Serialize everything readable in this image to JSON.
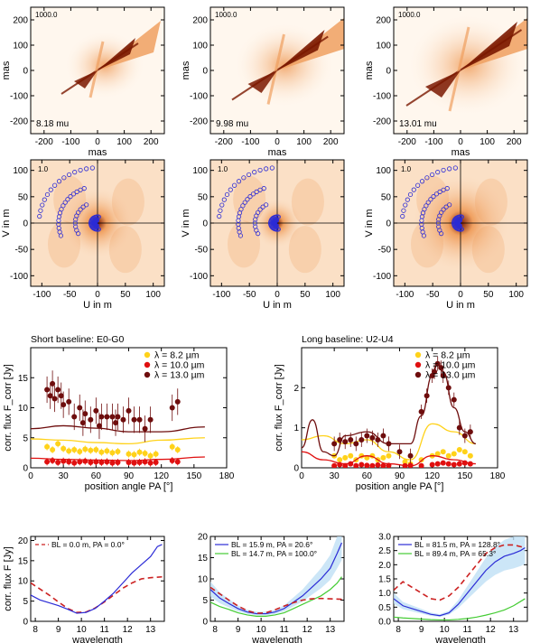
{
  "colors": {
    "axis": "#000000",
    "img_light": "#fff7ee",
    "img_mid": "#f0a060",
    "img_dark": "#7a1800",
    "uv_points": "#2b2bd6",
    "yellow": "#ffd21a",
    "red": "#e01010",
    "darkred": "#6e0d0d",
    "blue": "#2b2bd6",
    "green": "#44cc33",
    "blue_band": "#bfe0f5",
    "dash_red": "#cc2222"
  },
  "chart_data": [
    {
      "type": "heatmap",
      "panel": "image-1",
      "xlabel": "mas",
      "ylabel": "mas",
      "xlim": [
        -250,
        250
      ],
      "ylim": [
        -250,
        250
      ],
      "xticks": [
        -200,
        -100,
        0,
        100,
        200
      ],
      "yticks": [
        -200,
        -100,
        0,
        100,
        200
      ],
      "scale_label": "1000.0",
      "annotation": "8.18 mu"
    },
    {
      "type": "heatmap",
      "panel": "image-2",
      "xlabel": "mas",
      "ylabel": "mas",
      "xlim": [
        -250,
        250
      ],
      "ylim": [
        -250,
        250
      ],
      "xticks": [
        -200,
        -100,
        0,
        100,
        200
      ],
      "yticks": [
        -200,
        -100,
        0,
        100,
        200
      ],
      "scale_label": "1000.0",
      "annotation": "9.98 mu"
    },
    {
      "type": "heatmap",
      "panel": "image-3",
      "xlabel": "mas",
      "ylabel": "mas",
      "xlim": [
        -250,
        250
      ],
      "ylim": [
        -250,
        250
      ],
      "xticks": [
        -200,
        -100,
        0,
        100,
        200
      ],
      "yticks": [
        -200,
        -100,
        0,
        100,
        200
      ],
      "scale_label": "1000.0",
      "annotation": "13.01 mu"
    },
    {
      "type": "heatmap",
      "panel": "uv-1",
      "xlabel": "U in m",
      "ylabel": "V in m",
      "xlim": [
        -120,
        120
      ],
      "ylim": [
        -120,
        120
      ],
      "xticks": [
        -100,
        -50,
        0,
        50,
        100
      ],
      "yticks": [
        -100,
        -50,
        0,
        50,
        100
      ],
      "scale_label": "1.0"
    },
    {
      "type": "heatmap",
      "panel": "uv-2",
      "xlabel": "U in m",
      "ylabel": "V in m",
      "xlim": [
        -120,
        120
      ],
      "ylim": [
        -120,
        120
      ],
      "xticks": [
        -100,
        -50,
        0,
        50,
        100
      ],
      "yticks": [
        -100,
        -50,
        0,
        50,
        100
      ],
      "scale_label": "1.0"
    },
    {
      "type": "heatmap",
      "panel": "uv-3",
      "xlabel": "U in m",
      "ylabel": "V in m",
      "xlim": [
        -120,
        120
      ],
      "ylim": [
        -120,
        120
      ],
      "xticks": [
        -100,
        -50,
        0,
        50,
        100
      ],
      "yticks": [
        -100,
        -50,
        0,
        50,
        100
      ],
      "scale_label": "1.0"
    },
    {
      "type": "scatter",
      "panel": "short-baseline",
      "title": "Short baseline: E0-G0",
      "xlabel": "position angle PA [°]",
      "ylabel": "corr. flux F_corr [Jy]",
      "xlim": [
        0,
        180
      ],
      "ylim": [
        0,
        20
      ],
      "xticks": [
        0,
        30,
        60,
        90,
        120,
        150,
        180
      ],
      "yticks": [
        0,
        5,
        10,
        15
      ],
      "legend": [
        "λ =   8.2 µm",
        "λ = 10.0 µm",
        "λ = 13.0 µm"
      ],
      "series": [
        {
          "name": "λ =   8.2 µm",
          "color": "yellow",
          "x": [
            15,
            20,
            25,
            30,
            35,
            40,
            45,
            50,
            55,
            60,
            65,
            70,
            75,
            80,
            90,
            95,
            100,
            105,
            110,
            115,
            130,
            135
          ],
          "y": [
            3.5,
            3.0,
            4.0,
            3.2,
            2.8,
            3.0,
            2.7,
            3.1,
            2.9,
            3.0,
            2.6,
            2.8,
            2.5,
            2.7,
            2.3,
            2.2,
            2.6,
            2.4,
            2.0,
            2.3,
            3.5,
            3.0
          ],
          "model": {
            "x": [
              0,
              30,
              60,
              90,
              120,
              160
            ],
            "y": [
              4.8,
              4.6,
              4.2,
              4.0,
              4.6,
              5.0
            ]
          }
        },
        {
          "name": "λ = 10.0 µm",
          "color": "red",
          "x": [
            15,
            20,
            25,
            30,
            35,
            40,
            45,
            50,
            55,
            60,
            65,
            70,
            75,
            80,
            90,
            95,
            100,
            105,
            110,
            115,
            130,
            135
          ],
          "y": [
            1.0,
            1.2,
            0.9,
            1.1,
            1.0,
            0.8,
            1.0,
            1.1,
            0.9,
            1.0,
            0.9,
            1.0,
            0.8,
            0.9,
            0.9,
            0.8,
            0.9,
            1.0,
            0.8,
            0.9,
            1.2,
            1.0
          ],
          "model": {
            "x": [
              0,
              30,
              60,
              90,
              120,
              160
            ],
            "y": [
              1.6,
              1.4,
              1.3,
              1.2,
              1.4,
              1.8
            ]
          }
        },
        {
          "name": "λ = 13.0 µm",
          "color": "darkred",
          "x": [
            15,
            18,
            20,
            22,
            25,
            28,
            30,
            35,
            40,
            45,
            48,
            50,
            55,
            60,
            63,
            65,
            70,
            75,
            78,
            80,
            85,
            90,
            95,
            100,
            105,
            110,
            130,
            135
          ],
          "y": [
            13,
            12,
            14,
            11.5,
            13,
            12,
            10.5,
            11,
            8.5,
            10,
            7.5,
            9,
            8,
            9.5,
            7,
            8.5,
            8.5,
            8.5,
            7.5,
            8.5,
            8,
            9.5,
            8,
            8,
            6.5,
            8,
            10,
            11
          ],
          "model": {
            "x": [
              0,
              30,
              60,
              90,
              120,
              160
            ],
            "y": [
              6.5,
              7.0,
              6.6,
              6.0,
              6.0,
              6.8
            ]
          }
        }
      ]
    },
    {
      "type": "scatter",
      "panel": "long-baseline",
      "title": "Long  baseline: U2-U4",
      "xlabel": "position angle PA [°]",
      "ylabel": "corr. flux F_corr [Jy]",
      "xlim": [
        0,
        180
      ],
      "ylim": [
        0,
        3
      ],
      "xticks": [
        0,
        30,
        60,
        90,
        120,
        150,
        180
      ],
      "yticks": [
        0,
        1,
        2
      ],
      "legend": [
        "λ =   8.2 µm",
        "λ = 10.0 µm",
        "λ = 13.0 µm"
      ],
      "series": [
        {
          "name": "λ =   8.2 µm",
          "color": "yellow",
          "x": [
            30,
            35,
            40,
            45,
            50,
            55,
            60,
            65,
            70,
            75,
            80,
            95,
            100,
            110,
            120,
            125,
            130,
            135,
            140,
            145,
            150,
            155
          ],
          "y": [
            0.3,
            0.2,
            0.25,
            0.3,
            0.2,
            0.3,
            0.25,
            0.3,
            0.2,
            0.25,
            0.3,
            0.15,
            0.1,
            0.2,
            0.3,
            0.35,
            0.4,
            0.3,
            0.35,
            0.45,
            0.4,
            0.3
          ],
          "model": {
            "x": [
              0,
              20,
              40,
              60,
              80,
              100,
              120,
              140,
              160
            ],
            "y": [
              0.7,
              0.8,
              0.6,
              0.7,
              0.4,
              0.2,
              1.1,
              0.9,
              0.6
            ]
          }
        },
        {
          "name": "λ = 10.0 µm",
          "color": "red",
          "x": [
            30,
            35,
            40,
            45,
            50,
            55,
            60,
            65,
            70,
            75,
            80,
            95,
            100,
            110,
            120,
            125,
            130,
            135,
            140,
            145,
            150,
            155
          ],
          "y": [
            0.05,
            0.08,
            0.05,
            0.1,
            0.05,
            0.08,
            0.06,
            0.05,
            0.07,
            0.05,
            0.06,
            0.05,
            0.06,
            0.05,
            0.08,
            0.1,
            0.12,
            0.1,
            0.08,
            0.1,
            0.12,
            0.1
          ],
          "model": {
            "x": [
              0,
              20,
              40,
              60,
              80,
              100,
              120,
              140,
              160
            ],
            "y": [
              0.4,
              0.2,
              0.1,
              0.3,
              0.1,
              0.05,
              0.3,
              0.2,
              0.1
            ]
          }
        },
        {
          "name": "λ = 13.0 µm",
          "color": "darkred",
          "x": [
            30,
            35,
            40,
            45,
            50,
            55,
            60,
            65,
            70,
            75,
            80,
            90,
            100,
            110,
            115,
            120,
            122,
            125,
            128,
            130,
            135,
            140,
            145,
            150,
            155
          ],
          "y": [
            0.6,
            0.7,
            0.65,
            0.7,
            0.6,
            0.7,
            0.8,
            0.75,
            0.7,
            0.8,
            0.6,
            0.4,
            0.3,
            1.4,
            1.8,
            2.3,
            2.4,
            2.6,
            2.5,
            2.3,
            2.0,
            1.7,
            1.0,
            0.8,
            0.9
          ],
          "model": {
            "x": [
              0,
              10,
              20,
              30,
              40,
              60,
              80,
              100,
              110,
              120,
              125,
              130,
              140,
              150,
              160
            ],
            "y": [
              0.5,
              1.2,
              0.4,
              0.3,
              0.8,
              0.9,
              0.6,
              0.6,
              1.3,
              2.3,
              2.6,
              2.4,
              1.5,
              0.9,
              0.6
            ]
          }
        }
      ]
    },
    {
      "type": "line",
      "panel": "spectrum-1",
      "xlabel": "wavelength",
      "ylabel": "corr. flux F [Jy]",
      "xlim": [
        7.8,
        13.6
      ],
      "ylim": [
        0,
        21
      ],
      "xticks": [
        8,
        9,
        10,
        11,
        12,
        13
      ],
      "yticks": [
        0,
        5,
        10,
        15,
        20
      ],
      "series": [
        {
          "name": "BL =   0.0 m, PA =   0.0°",
          "color": "dash_red",
          "style": "dashed",
          "x": [
            7.8,
            8.2,
            8.6,
            9.0,
            9.4,
            9.8,
            10.2,
            10.6,
            11.0,
            11.4,
            11.8,
            12.2,
            12.6,
            13.0,
            13.5
          ],
          "y": [
            9.5,
            8.0,
            6.5,
            4.8,
            3.2,
            2.2,
            2.3,
            3.3,
            4.8,
            6.5,
            8.2,
            9.5,
            10.5,
            10.8,
            11.0
          ]
        },
        {
          "name": "",
          "color": "blue",
          "style": "solid",
          "x": [
            7.8,
            8.2,
            8.6,
            9.0,
            9.4,
            9.8,
            10.2,
            10.6,
            11.0,
            11.4,
            11.8,
            12.2,
            12.6,
            13.0,
            13.3,
            13.5
          ],
          "y": [
            6.5,
            5.3,
            4.6,
            3.9,
            3.0,
            2.0,
            2.2,
            3.2,
            5.0,
            7.0,
            9.5,
            12.0,
            14.0,
            16.0,
            18.5,
            19.0
          ]
        }
      ]
    },
    {
      "type": "line",
      "panel": "spectrum-2",
      "xlabel": "wavelength",
      "ylabel": "",
      "xlim": [
        7.8,
        13.6
      ],
      "ylim": [
        0,
        20
      ],
      "xticks": [
        8,
        9,
        10,
        11,
        12,
        13
      ],
      "yticks": [
        0,
        5,
        10,
        15,
        20
      ],
      "series": [
        {
          "name": "BL =  15.9 m, PA =  20.6°",
          "color": "blue",
          "style": "solid",
          "x": [
            7.8,
            8.2,
            8.6,
            9.0,
            9.4,
            9.8,
            10.2,
            10.6,
            11.0,
            11.4,
            11.8,
            12.2,
            12.6,
            13.0,
            13.3,
            13.5
          ],
          "y": [
            7.5,
            5.5,
            4.2,
            3.0,
            2.2,
            1.8,
            1.8,
            2.2,
            3.0,
            4.5,
            6.0,
            8.0,
            10.0,
            12.5,
            16.0,
            18.5
          ]
        },
        {
          "name": "BL =  14.7 m, PA = 100.0°",
          "color": "green",
          "style": "solid",
          "x": [
            7.8,
            8.2,
            8.6,
            9.0,
            9.4,
            9.8,
            10.2,
            10.6,
            11.0,
            11.4,
            11.8,
            12.2,
            12.6,
            13.0,
            13.3,
            13.5
          ],
          "y": [
            4.5,
            3.5,
            2.8,
            2.0,
            1.5,
            1.2,
            1.2,
            1.5,
            2.0,
            3.0,
            4.0,
            5.0,
            6.0,
            7.5,
            9.0,
            10.5
          ]
        },
        {
          "name": "",
          "color": "dash_red",
          "style": "dashed",
          "x": [
            7.8,
            8.2,
            8.6,
            9.0,
            9.4,
            9.8,
            10.2,
            10.6,
            11.0,
            11.4,
            11.8,
            12.2,
            12.6,
            13.0,
            13.5
          ],
          "y": [
            8.0,
            6.5,
            5.0,
            3.6,
            2.5,
            1.9,
            2.0,
            2.7,
            3.6,
            4.4,
            5.0,
            5.3,
            5.4,
            5.3,
            5.2
          ]
        }
      ]
    },
    {
      "type": "line",
      "panel": "spectrum-3",
      "xlabel": "wavelength",
      "ylabel": "",
      "xlim": [
        7.8,
        13.6
      ],
      "ylim": [
        0,
        3
      ],
      "xticks": [
        8,
        9,
        10,
        11,
        12,
        13
      ],
      "yticks": [
        0.0,
        0.5,
        1.0,
        1.5,
        2.0,
        2.5,
        3.0
      ],
      "series": [
        {
          "name": "BL =  81.5 m, PA = 128.8°",
          "color": "blue",
          "style": "solid",
          "x": [
            7.8,
            8.2,
            8.6,
            9.0,
            9.4,
            9.8,
            10.2,
            10.6,
            11.0,
            11.4,
            11.8,
            12.2,
            12.6,
            13.0,
            13.3,
            13.5
          ],
          "y": [
            0.8,
            0.55,
            0.45,
            0.35,
            0.25,
            0.2,
            0.3,
            0.6,
            1.0,
            1.4,
            1.8,
            2.1,
            2.3,
            2.4,
            2.5,
            2.6
          ]
        },
        {
          "name": "BL =  89.4 m, PA =  65.3°",
          "color": "green",
          "style": "solid",
          "x": [
            7.8,
            8.2,
            8.6,
            9.0,
            9.4,
            9.8,
            10.2,
            10.6,
            11.0,
            11.4,
            11.8,
            12.2,
            12.6,
            13.0,
            13.3,
            13.5
          ],
          "y": [
            0.15,
            0.12,
            0.1,
            0.08,
            0.06,
            0.05,
            0.05,
            0.07,
            0.1,
            0.15,
            0.22,
            0.3,
            0.4,
            0.55,
            0.7,
            0.8
          ]
        },
        {
          "name": "",
          "color": "dash_red",
          "style": "dashed",
          "x": [
            7.8,
            8.2,
            8.6,
            9.0,
            9.4,
            9.8,
            10.2,
            10.6,
            11.0,
            11.4,
            11.8,
            12.2,
            12.6,
            13.0,
            13.5
          ],
          "y": [
            1.1,
            1.4,
            1.2,
            1.0,
            0.8,
            0.75,
            0.9,
            1.2,
            1.6,
            2.0,
            2.4,
            2.6,
            2.7,
            2.7,
            2.6
          ]
        }
      ]
    }
  ]
}
